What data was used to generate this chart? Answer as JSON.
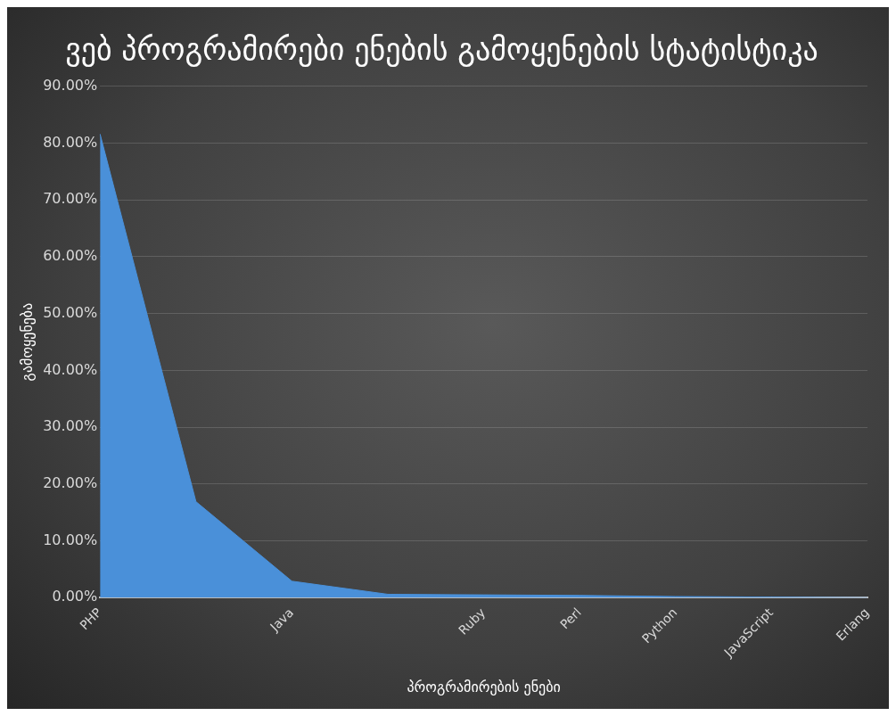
{
  "chart_data": {
    "type": "area",
    "title": "ვებ პროგრამირები ენების გამოყენების სტატისტიკა",
    "xlabel": "პროგრამირების ენები",
    "ylabel": "გამოყენება",
    "categories": [
      "PHP",
      null,
      "Java",
      null,
      "Ruby",
      "Perl",
      "Python",
      "JavaScript",
      "Erlang"
    ],
    "values": [
      81.6,
      16.9,
      2.9,
      0.6,
      0.5,
      0.4,
      0.2,
      0.1,
      0
    ],
    "color": "#4a90d9",
    "ylim": [
      0,
      90
    ],
    "yticks": [
      {
        "value": 0,
        "label": "0.00%"
      },
      {
        "value": 10,
        "label": "10.00%"
      },
      {
        "value": 20,
        "label": "20.00%"
      },
      {
        "value": 30,
        "label": "30.00%"
      },
      {
        "value": 40,
        "label": "40.00%"
      },
      {
        "value": 50,
        "label": "50.00%"
      },
      {
        "value": 60,
        "label": "60.00%"
      },
      {
        "value": 70,
        "label": "70.00%"
      },
      {
        "value": 80,
        "label": "80.00%"
      },
      {
        "value": 90,
        "label": "90.00%"
      }
    ],
    "grid": "y",
    "legend": false
  }
}
